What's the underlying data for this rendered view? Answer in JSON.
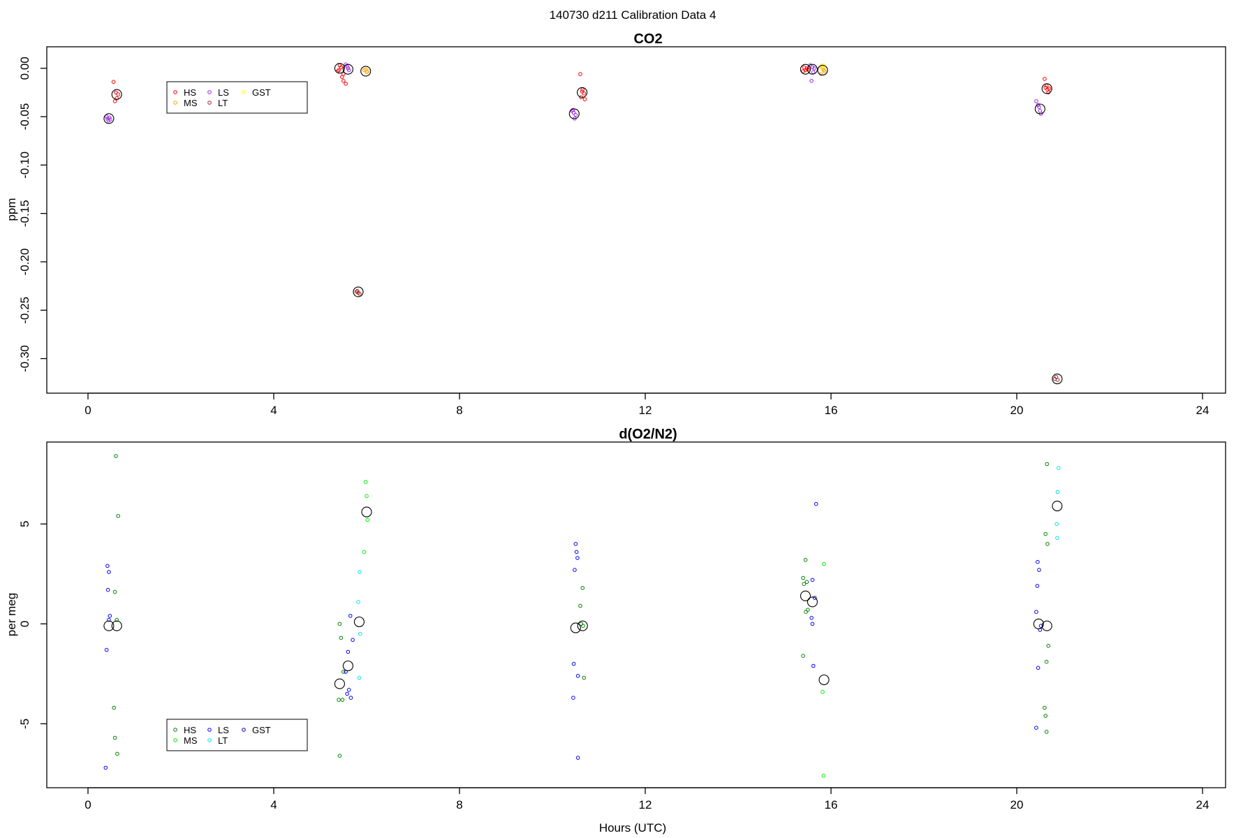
{
  "page_title": "140730   d211   Calibration Data 4",
  "x_axis_label": "Hours (UTC)",
  "chart_data": [
    {
      "type": "scatter",
      "title": "CO2",
      "ylabel": "ppm",
      "xlabel": "",
      "xlim": [
        0,
        24
      ],
      "ylim": [
        -0.3357,
        0.0222
      ],
      "x_ticks": [
        0,
        4,
        8,
        12,
        16,
        20,
        24
      ],
      "y_ticks": [
        0.0,
        -0.05,
        -0.1,
        -0.15,
        -0.2,
        -0.25,
        -0.3
      ],
      "y_tick_labels": [
        "0.00",
        "-0.05",
        "-0.10",
        "-0.15",
        "-0.20",
        "-0.25",
        "-0.30"
      ],
      "legend": {
        "placement": "top-left",
        "entries": [
          {
            "label": "HS",
            "color": "#ff0000"
          },
          {
            "label": "MS",
            "color": "#ffa500"
          },
          {
            "label": "LS",
            "color": "#a020f0"
          },
          {
            "label": "LT",
            "color": "#a52a2a"
          },
          {
            "label": "GST",
            "color": "#ffff00"
          }
        ]
      },
      "series": [
        {
          "name": "HS",
          "color": "#ff0000",
          "points": [
            [
              0.55,
              -0.014
            ],
            [
              0.6,
              -0.025
            ],
            [
              0.62,
              -0.031
            ],
            [
              0.58,
              -0.034
            ],
            [
              0.65,
              -0.027
            ],
            [
              5.4,
              -0.002
            ],
            [
              5.42,
              0.003
            ],
            [
              5.45,
              0.001
            ],
            [
              5.47,
              -0.009
            ],
            [
              5.5,
              -0.013
            ],
            [
              5.55,
              -0.016
            ],
            [
              5.38,
              -0.003
            ],
            [
              5.5,
              -0.006
            ],
            [
              10.6,
              -0.006
            ],
            [
              10.65,
              -0.022
            ],
            [
              10.68,
              -0.026
            ],
            [
              10.62,
              -0.03
            ],
            [
              10.7,
              -0.032
            ],
            [
              10.64,
              -0.024
            ],
            [
              15.42,
              0.001
            ],
            [
              15.45,
              -0.002
            ],
            [
              15.5,
              -0.001
            ],
            [
              15.4,
              -0.003
            ],
            [
              15.48,
              0.0
            ],
            [
              20.6,
              -0.011
            ],
            [
              20.64,
              -0.018
            ],
            [
              20.66,
              -0.022
            ],
            [
              20.68,
              -0.025
            ],
            [
              20.62,
              -0.02
            ],
            [
              20.7,
              -0.021
            ]
          ]
        },
        {
          "name": "MS",
          "color": "#ffa500",
          "points": [
            [
              5.95,
              -0.002
            ],
            [
              6.0,
              -0.004
            ],
            [
              6.02,
              -0.003
            ],
            [
              5.98,
              -0.001
            ],
            [
              15.8,
              0.002
            ],
            [
              15.84,
              -0.002
            ],
            [
              15.78,
              -0.006
            ],
            [
              15.82,
              0.0
            ],
            [
              15.86,
              -0.003
            ]
          ]
        },
        {
          "name": "LS",
          "color": "#a020f0",
          "points": [
            [
              0.4,
              -0.05
            ],
            [
              0.42,
              -0.052
            ],
            [
              0.44,
              -0.054
            ],
            [
              0.46,
              -0.051
            ],
            [
              0.48,
              -0.053
            ],
            [
              5.55,
              0.004
            ],
            [
              5.6,
              0.0
            ],
            [
              5.62,
              -0.002
            ],
            [
              5.58,
              0.002
            ],
            [
              10.42,
              -0.044
            ],
            [
              10.46,
              -0.046
            ],
            [
              10.5,
              -0.048
            ],
            [
              10.48,
              -0.052
            ],
            [
              10.44,
              -0.043
            ],
            [
              15.55,
              0.003
            ],
            [
              15.6,
              0.001
            ],
            [
              15.62,
              -0.004
            ],
            [
              15.58,
              -0.013
            ],
            [
              15.64,
              0.0
            ],
            [
              20.42,
              -0.034
            ],
            [
              20.46,
              -0.038
            ],
            [
              20.5,
              -0.044
            ],
            [
              20.52,
              -0.047
            ],
            [
              20.48,
              -0.04
            ]
          ]
        },
        {
          "name": "LT",
          "color": "#a52a2a",
          "points": [
            [
              5.8,
              -0.23
            ],
            [
              5.82,
              -0.232
            ],
            [
              5.85,
              -0.233
            ],
            [
              5.78,
              -0.231
            ],
            [
              20.85,
              -0.319
            ],
            [
              20.88,
              -0.322
            ],
            [
              20.82,
              -0.321
            ]
          ]
        },
        {
          "name": "GST",
          "color": "#ffff00",
          "points": [
            [
              15.82,
              0.003
            ],
            [
              15.78,
              0.001
            ],
            [
              15.85,
              0.002
            ]
          ]
        }
      ],
      "means": [
        [
          0.45,
          -0.052
        ],
        [
          0.62,
          -0.027
        ],
        [
          5.42,
          0.0
        ],
        [
          5.6,
          -0.001
        ],
        [
          5.98,
          -0.003
        ],
        [
          5.82,
          -0.231
        ],
        [
          10.47,
          -0.047
        ],
        [
          10.64,
          -0.025
        ],
        [
          15.45,
          -0.001
        ],
        [
          15.6,
          -0.001
        ],
        [
          15.82,
          -0.002
        ],
        [
          20.5,
          -0.042
        ],
        [
          20.65,
          -0.021
        ],
        [
          20.87,
          -0.321
        ]
      ]
    },
    {
      "type": "scatter",
      "title": "d(O2/N2)",
      "ylabel": "per meg",
      "xlabel": "Hours (UTC)",
      "xlim": [
        0,
        24
      ],
      "ylim": [
        -8.2,
        9.1
      ],
      "x_ticks": [
        0,
        4,
        8,
        12,
        16,
        20,
        24
      ],
      "y_ticks": [
        5,
        0,
        -5
      ],
      "y_tick_labels": [
        "5",
        "0",
        "-5"
      ],
      "legend": {
        "placement": "bottom-left",
        "entries": [
          {
            "label": "HS",
            "color": "#008000"
          },
          {
            "label": "MS",
            "color": "#00ee00"
          },
          {
            "label": "LS",
            "color": "#0000ff"
          },
          {
            "label": "LT",
            "color": "#00e5ee"
          },
          {
            "label": "GST",
            "color": "#0000cd"
          }
        ]
      },
      "series": [
        {
          "name": "HS",
          "color": "#008000",
          "points": [
            [
              0.6,
              8.4
            ],
            [
              0.65,
              5.4
            ],
            [
              0.58,
              1.6
            ],
            [
              0.62,
              0.2
            ],
            [
              0.56,
              -4.2
            ],
            [
              0.58,
              -5.7
            ],
            [
              0.63,
              -6.5
            ],
            [
              5.42,
              0.0
            ],
            [
              5.45,
              -0.7
            ],
            [
              5.5,
              -2.4
            ],
            [
              5.4,
              -3.8
            ],
            [
              5.48,
              -3.8
            ],
            [
              5.42,
              -6.6
            ],
            [
              10.65,
              1.8
            ],
            [
              10.6,
              0.9
            ],
            [
              10.62,
              0.0
            ],
            [
              10.66,
              -0.1
            ],
            [
              10.68,
              -2.7
            ],
            [
              15.45,
              3.2
            ],
            [
              15.4,
              2.3
            ],
            [
              15.48,
              2.1
            ],
            [
              15.42,
              2.0
            ],
            [
              15.5,
              0.7
            ],
            [
              15.46,
              0.6
            ],
            [
              15.4,
              -1.6
            ],
            [
              20.65,
              8.0
            ],
            [
              20.62,
              4.5
            ],
            [
              20.66,
              4.0
            ],
            [
              20.68,
              -1.1
            ],
            [
              20.64,
              -1.9
            ],
            [
              20.6,
              -4.2
            ],
            [
              20.62,
              -4.6
            ],
            [
              20.64,
              -5.4
            ]
          ]
        },
        {
          "name": "MS",
          "color": "#00ee00",
          "points": [
            [
              5.98,
              7.1
            ],
            [
              6.0,
              6.4
            ],
            [
              6.02,
              5.2
            ],
            [
              5.95,
              3.6
            ],
            [
              15.85,
              3.0
            ],
            [
              15.82,
              -3.4
            ],
            [
              15.84,
              -7.6
            ]
          ]
        },
        {
          "name": "LS",
          "color": "#0000ff",
          "points": [
            [
              0.42,
              2.9
            ],
            [
              0.45,
              2.6
            ],
            [
              0.43,
              1.7
            ],
            [
              0.47,
              0.4
            ],
            [
              0.45,
              0.2
            ],
            [
              0.4,
              -1.3
            ],
            [
              0.38,
              -7.2
            ],
            [
              5.65,
              0.4
            ],
            [
              5.7,
              -0.8
            ],
            [
              5.6,
              -1.4
            ],
            [
              5.55,
              -2.4
            ],
            [
              5.62,
              -3.3
            ],
            [
              5.58,
              -3.5
            ],
            [
              5.66,
              -3.7
            ],
            [
              10.5,
              4.0
            ],
            [
              10.52,
              3.6
            ],
            [
              10.54,
              3.3
            ],
            [
              10.48,
              2.7
            ],
            [
              10.46,
              -2.0
            ],
            [
              10.55,
              -2.6
            ],
            [
              10.45,
              -3.7
            ],
            [
              10.55,
              -6.7
            ],
            [
              15.68,
              6.0
            ],
            [
              15.6,
              2.2
            ],
            [
              15.65,
              1.3
            ],
            [
              15.58,
              0.3
            ],
            [
              15.6,
              0.0
            ],
            [
              15.62,
              -2.1
            ],
            [
              20.45,
              3.1
            ],
            [
              20.48,
              2.7
            ],
            [
              20.44,
              1.9
            ],
            [
              20.42,
              0.6
            ],
            [
              20.5,
              -0.3
            ],
            [
              20.46,
              -2.2
            ],
            [
              20.42,
              -5.2
            ]
          ]
        },
        {
          "name": "LT",
          "color": "#00e5ee",
          "points": [
            [
              5.85,
              2.6
            ],
            [
              5.82,
              1.1
            ],
            [
              5.86,
              -0.5
            ],
            [
              5.84,
              -2.7
            ],
            [
              20.9,
              7.8
            ],
            [
              20.88,
              6.6
            ],
            [
              20.86,
              5.0
            ],
            [
              20.87,
              4.3
            ]
          ]
        },
        {
          "name": "GST",
          "color": "#0000cd",
          "points": [
            [
              20.52,
              -0.1
            ]
          ]
        }
      ],
      "means": [
        [
          0.45,
          -0.1
        ],
        [
          0.62,
          -0.1
        ],
        [
          5.42,
          -3.0
        ],
        [
          5.6,
          -2.1
        ],
        [
          6.0,
          5.6
        ],
        [
          5.84,
          0.1
        ],
        [
          10.5,
          -0.2
        ],
        [
          10.65,
          -0.1
        ],
        [
          15.45,
          1.4
        ],
        [
          15.6,
          1.1
        ],
        [
          15.85,
          -2.8
        ],
        [
          20.47,
          0.0
        ],
        [
          20.65,
          -0.1
        ],
        [
          20.87,
          5.9
        ]
      ]
    }
  ]
}
